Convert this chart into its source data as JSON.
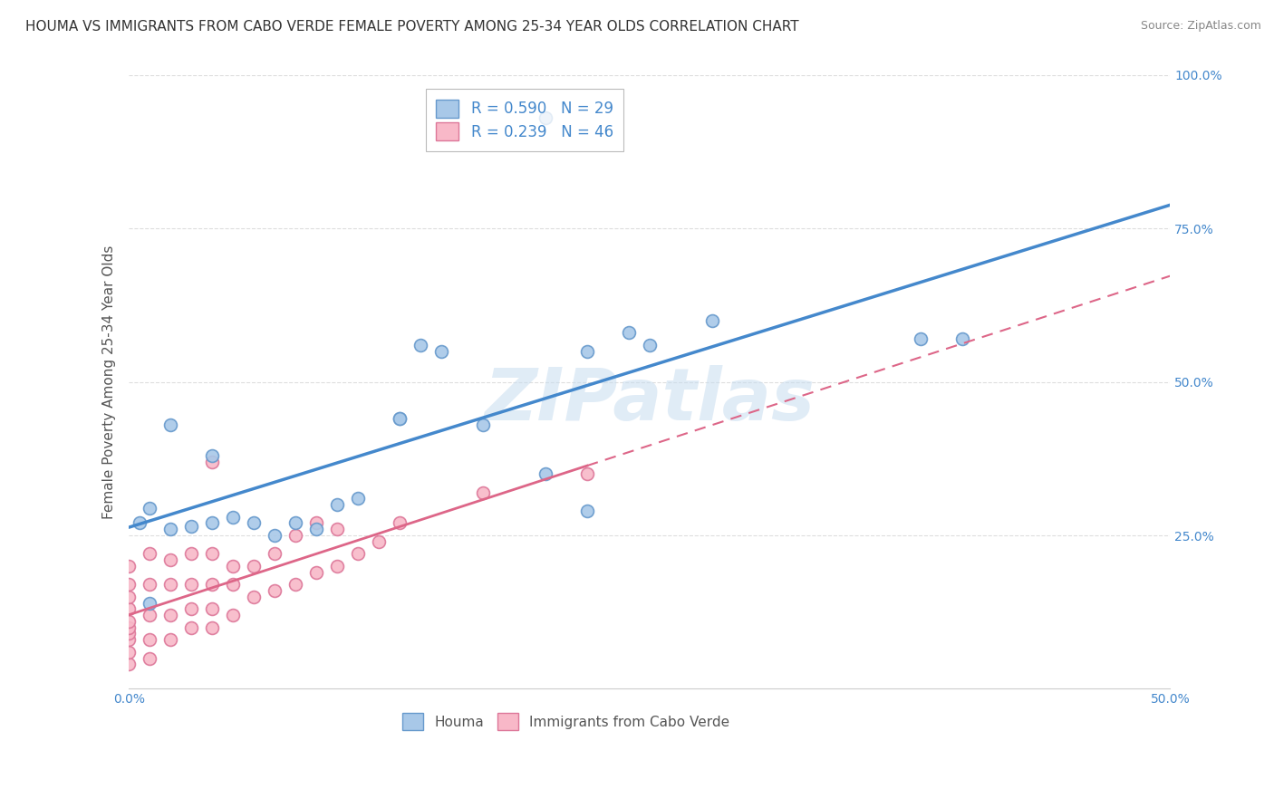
{
  "title": "HOUMA VS IMMIGRANTS FROM CABO VERDE FEMALE POVERTY AMONG 25-34 YEAR OLDS CORRELATION CHART",
  "source": "Source: ZipAtlas.com",
  "ylabel": "Female Poverty Among 25-34 Year Olds",
  "xlim": [
    0.0,
    0.5
  ],
  "ylim": [
    0.0,
    1.0
  ],
  "xticks": [
    0.0,
    0.1,
    0.2,
    0.3,
    0.4,
    0.5
  ],
  "xticklabels": [
    "0.0%",
    "",
    "",
    "",
    "",
    "50.0%"
  ],
  "yticks": [
    0.25,
    0.5,
    0.75,
    1.0
  ],
  "yticklabels": [
    "25.0%",
    "50.0%",
    "75.0%",
    "100.0%"
  ],
  "houma_color": "#a8c8e8",
  "houma_edge": "#6699cc",
  "cabo_color": "#f8b8c8",
  "cabo_edge": "#dd7799",
  "houma_R": 0.59,
  "houma_N": 29,
  "cabo_R": 0.239,
  "cabo_N": 46,
  "houma_line_color": "#4488cc",
  "cabo_line_color": "#dd6688",
  "cabo_line_dash": [
    6,
    4
  ],
  "watermark": "ZIPatlas",
  "houma_x": [
    0.005,
    0.01,
    0.02,
    0.03,
    0.04,
    0.05,
    0.06,
    0.07,
    0.08,
    0.09,
    0.1,
    0.11,
    0.13,
    0.15,
    0.17,
    0.2,
    0.22,
    0.24,
    0.38,
    0.4,
    0.28,
    0.2,
    0.25,
    0.13,
    0.14,
    0.04,
    0.02,
    0.01,
    0.22
  ],
  "houma_y": [
    0.27,
    0.295,
    0.26,
    0.265,
    0.27,
    0.28,
    0.27,
    0.25,
    0.27,
    0.26,
    0.3,
    0.31,
    0.44,
    0.55,
    0.43,
    0.35,
    0.55,
    0.58,
    0.57,
    0.57,
    0.6,
    0.93,
    0.56,
    0.44,
    0.56,
    0.38,
    0.43,
    0.14,
    0.29
  ],
  "cabo_x": [
    0.0,
    0.0,
    0.0,
    0.0,
    0.0,
    0.0,
    0.0,
    0.0,
    0.0,
    0.0,
    0.01,
    0.01,
    0.01,
    0.01,
    0.01,
    0.02,
    0.02,
    0.02,
    0.02,
    0.03,
    0.03,
    0.03,
    0.03,
    0.04,
    0.04,
    0.04,
    0.04,
    0.04,
    0.05,
    0.05,
    0.05,
    0.06,
    0.06,
    0.07,
    0.07,
    0.08,
    0.08,
    0.09,
    0.09,
    0.1,
    0.1,
    0.11,
    0.12,
    0.13,
    0.17,
    0.22
  ],
  "cabo_y": [
    0.04,
    0.06,
    0.08,
    0.09,
    0.1,
    0.11,
    0.13,
    0.15,
    0.17,
    0.2,
    0.05,
    0.08,
    0.12,
    0.17,
    0.22,
    0.08,
    0.12,
    0.17,
    0.21,
    0.1,
    0.13,
    0.17,
    0.22,
    0.1,
    0.13,
    0.17,
    0.22,
    0.37,
    0.12,
    0.17,
    0.2,
    0.15,
    0.2,
    0.16,
    0.22,
    0.17,
    0.25,
    0.19,
    0.27,
    0.2,
    0.26,
    0.22,
    0.24,
    0.27,
    0.32,
    0.35
  ],
  "grid_color": "#dddddd",
  "background_color": "#ffffff",
  "title_fontsize": 11,
  "axis_label_fontsize": 11,
  "tick_fontsize": 10,
  "legend_fontsize": 12,
  "marker_size": 100
}
